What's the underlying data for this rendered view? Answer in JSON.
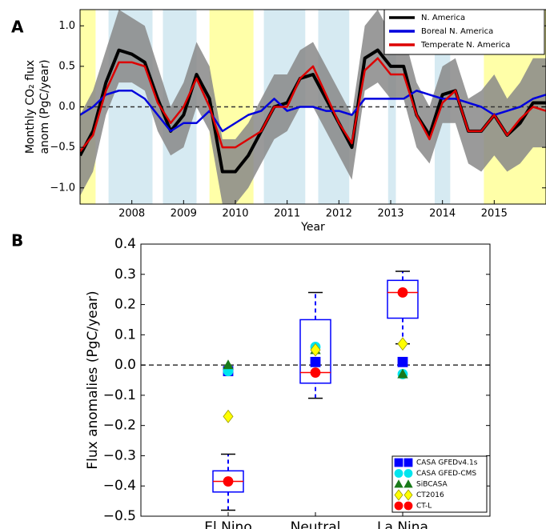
{
  "chart_data": [
    {
      "type": "line",
      "panel_label": "A",
      "xlabel": "Year",
      "ylabel": [
        "Monthly CO₂ flux",
        "anom (PgC/year)"
      ],
      "xlim": [
        2007,
        2016
      ],
      "xticks": [
        2008,
        2009,
        2010,
        2011,
        2012,
        2013,
        2014,
        2015
      ],
      "ylim": [
        -1.2,
        1.2
      ],
      "yticks": [
        {
          "value": -1,
          "label": "−1.0"
        },
        {
          "value": -0.5,
          "label": "−0.5"
        },
        {
          "value": 0,
          "label": "0.0"
        },
        0.5,
        {
          "value": 1,
          "label": "1.0"
        }
      ],
      "reference_line": 0,
      "spans": [
        {
          "start": 2007.0,
          "end": 2007.3,
          "color": "#ffffa8"
        },
        {
          "start": 2007.55,
          "end": 2008.4,
          "color": "#d6eaf2"
        },
        {
          "start": 2008.6,
          "end": 2009.25,
          "color": "#d6eaf2"
        },
        {
          "start": 2009.5,
          "end": 2010.35,
          "color": "#ffffa8"
        },
        {
          "start": 2010.55,
          "end": 2011.35,
          "color": "#d6eaf2"
        },
        {
          "start": 2011.6,
          "end": 2012.2,
          "color": "#d6eaf2"
        },
        {
          "start": 2012.95,
          "end": 2013.1,
          "color": "#d6eaf2"
        },
        {
          "start": 2013.85,
          "end": 2014.15,
          "color": "#d6eaf2"
        },
        {
          "start": 2014.8,
          "end": 2016.0,
          "color": "#ffffa8"
        }
      ],
      "x": [
        2007.0,
        2007.25,
        2007.5,
        2007.75,
        2008.0,
        2008.25,
        2008.5,
        2008.75,
        2009.0,
        2009.25,
        2009.5,
        2009.75,
        2010.0,
        2010.25,
        2010.5,
        2010.75,
        2011.0,
        2011.25,
        2011.5,
        2011.75,
        2012.0,
        2012.25,
        2012.5,
        2012.75,
        2013.0,
        2013.25,
        2013.5,
        2013.75,
        2014.0,
        2014.25,
        2014.5,
        2014.75,
        2015.0,
        2015.25,
        2015.5,
        2015.75,
        2016.0
      ],
      "band": {
        "color": "#888888",
        "lower": [
          -1.1,
          -0.8,
          -0.1,
          0.3,
          0.3,
          0.2,
          -0.3,
          -0.6,
          -0.5,
          0.0,
          -0.3,
          -1.2,
          -1.2,
          -1.0,
          -0.7,
          -0.4,
          -0.3,
          0.0,
          0.0,
          -0.3,
          -0.6,
          -0.9,
          0.2,
          0.3,
          0.1,
          0.1,
          -0.5,
          -0.7,
          -0.2,
          -0.2,
          -0.7,
          -0.8,
          -0.6,
          -0.8,
          -0.7,
          -0.5,
          -0.5
        ],
        "upper": [
          -0.1,
          0.2,
          0.7,
          1.2,
          1.1,
          1.0,
          0.5,
          0.0,
          0.3,
          0.8,
          0.5,
          -0.4,
          -0.4,
          -0.2,
          0.1,
          0.4,
          0.4,
          0.7,
          0.8,
          0.5,
          0.2,
          -0.1,
          1.0,
          1.2,
          0.9,
          0.9,
          0.3,
          0.0,
          0.5,
          0.6,
          0.1,
          0.2,
          0.4,
          0.1,
          0.3,
          0.6,
          0.6
        ]
      },
      "series": [
        {
          "name": "N. America",
          "color": "#000000",
          "width": 4,
          "values": [
            -0.6,
            -0.3,
            0.3,
            0.7,
            0.65,
            0.55,
            0.1,
            -0.3,
            -0.1,
            0.4,
            0.1,
            -0.8,
            -0.8,
            -0.6,
            -0.3,
            0.0,
            0.05,
            0.35,
            0.4,
            0.1,
            -0.2,
            -0.5,
            0.6,
            0.7,
            0.5,
            0.5,
            -0.1,
            -0.35,
            0.15,
            0.2,
            -0.3,
            -0.3,
            -0.1,
            -0.35,
            -0.2,
            0.05,
            0.05
          ]
        },
        {
          "name": "Boreal N. America",
          "color": "#0000dd",
          "width": 2.5,
          "values": [
            -0.1,
            0.0,
            0.15,
            0.2,
            0.2,
            0.1,
            -0.1,
            -0.3,
            -0.2,
            -0.2,
            -0.05,
            -0.3,
            -0.2,
            -0.1,
            -0.05,
            0.1,
            -0.05,
            0.0,
            0.0,
            -0.05,
            -0.05,
            -0.1,
            0.1,
            0.1,
            0.1,
            0.1,
            0.2,
            0.15,
            0.1,
            0.1,
            0.05,
            0.0,
            -0.1,
            -0.05,
            0.0,
            0.1,
            0.15
          ]
        },
        {
          "name": "Temperate N. America",
          "color": "#dd0000",
          "width": 2.5,
          "values": [
            -0.55,
            -0.35,
            0.2,
            0.55,
            0.55,
            0.5,
            0.05,
            -0.2,
            0.0,
            0.35,
            0.0,
            -0.5,
            -0.5,
            -0.4,
            -0.3,
            0.0,
            0.0,
            0.35,
            0.5,
            0.15,
            -0.2,
            -0.45,
            0.45,
            0.6,
            0.4,
            0.4,
            -0.1,
            -0.4,
            0.05,
            0.2,
            -0.3,
            -0.3,
            -0.1,
            -0.35,
            -0.15,
            0.0,
            -0.05
          ]
        }
      ]
    },
    {
      "type": "box",
      "panel_label": "B",
      "ylabel": "Flux anomalies (PgC/year)",
      "categories": [
        "El Nino",
        "Neutral",
        "La Nina"
      ],
      "ylim": [
        -0.5,
        0.4
      ],
      "yticks": [
        {
          "value": -0.5,
          "label": "−0.5"
        },
        {
          "value": -0.4,
          "label": "−0.4"
        },
        {
          "value": -0.3,
          "label": "−0.3"
        },
        {
          "value": -0.2,
          "label": "−0.2"
        },
        {
          "value": -0.1,
          "label": "−0.1"
        },
        {
          "value": 0,
          "label": "0.0"
        },
        0.1,
        0.2,
        0.3,
        0.4
      ],
      "reference_line": 0,
      "box_color": "#0000ff",
      "median_color": "#ff0000",
      "boxes": [
        {
          "low": -0.48,
          "q1": -0.42,
          "median": -0.385,
          "q3": -0.35,
          "high": -0.295
        },
        {
          "low": -0.11,
          "q1": -0.06,
          "median": -0.025,
          "q3": 0.15,
          "high": 0.24
        },
        {
          "low": 0.07,
          "q1": 0.155,
          "median": 0.24,
          "q3": 0.28,
          "high": 0.31
        }
      ],
      "series": [
        {
          "name": "CASA GFEDv4.1s",
          "marker": "square",
          "color": "#0000ff",
          "values": [
            -0.02,
            0.01,
            0.01
          ]
        },
        {
          "name": "CASA GFED-CMS",
          "marker": "circle",
          "color": "#00e5ee",
          "values": [
            -0.02,
            0.06,
            -0.03
          ]
        },
        {
          "name": "SiBCASA",
          "marker": "triangle",
          "color": "#1a7a1a",
          "values": [
            0.0,
            0.05,
            -0.03
          ]
        },
        {
          "name": "CT2016",
          "marker": "diamond",
          "color": "#ffff00",
          "values": [
            -0.17,
            0.05,
            0.07
          ]
        },
        {
          "name": "CT-L",
          "marker": "circle",
          "color": "#ff0000",
          "values": [
            -0.385,
            -0.025,
            0.24
          ]
        }
      ]
    }
  ]
}
